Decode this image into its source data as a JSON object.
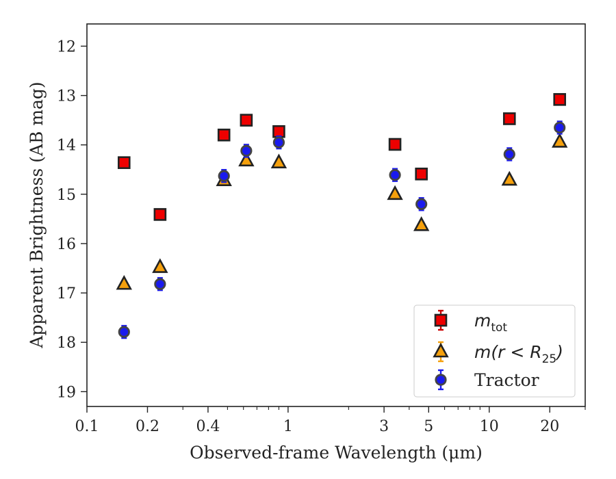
{
  "chart_data": {
    "type": "scatter",
    "title": "",
    "xlabel": "Observed-frame Wavelength (μm)",
    "ylabel": "Apparent Brightness (AB mag)",
    "xscale": "log",
    "xlim": [
      0.1,
      30
    ],
    "ylim": [
      19.3,
      11.55
    ],
    "y_inverted": true,
    "x_major_ticks": [
      {
        "value": 0.1,
        "label": "0.1"
      },
      {
        "value": 0.2,
        "label": "0.2"
      },
      {
        "value": 0.4,
        "label": "0.4"
      },
      {
        "value": 1,
        "label": "1"
      },
      {
        "value": 3,
        "label": "3"
      },
      {
        "value": 5,
        "label": "5"
      },
      {
        "value": 10,
        "label": "10"
      },
      {
        "value": 20,
        "label": "20"
      }
    ],
    "x_minor_ticks": [
      0.3,
      0.5,
      0.6,
      0.7,
      0.8,
      0.9,
      2,
      4,
      6,
      7,
      8,
      9,
      30
    ],
    "y_ticks": [
      {
        "value": 12,
        "label": "12"
      },
      {
        "value": 13,
        "label": "13"
      },
      {
        "value": 14,
        "label": "14"
      },
      {
        "value": 15,
        "label": "15"
      },
      {
        "value": 16,
        "label": "16"
      },
      {
        "value": 17,
        "label": "17"
      },
      {
        "value": 18,
        "label": "18"
      },
      {
        "value": 19,
        "label": "19"
      }
    ],
    "grid": false,
    "legend_position": "lower-right",
    "series": [
      {
        "name": "m_tot",
        "legend": {
          "main": "m",
          "sub": "tot",
          "rest": ""
        },
        "marker": "square",
        "color": "#ee0000",
        "errcolor": "#cc0000",
        "x": [
          0.153,
          0.231,
          0.48,
          0.62,
          0.9,
          3.4,
          4.6,
          12.6,
          22.4
        ],
        "y": [
          14.36,
          15.41,
          13.8,
          13.5,
          13.73,
          13.99,
          14.59,
          13.47,
          13.08
        ]
      },
      {
        "name": "m(r < R25)",
        "legend": {
          "main": "m(r < R",
          "sub": "25",
          "rest": ")"
        },
        "marker": "triangle",
        "color": "#f5a00c",
        "errcolor": "#f5a00c",
        "x": [
          0.153,
          0.231,
          0.48,
          0.62,
          0.9,
          3.4,
          4.6,
          12.6,
          22.4
        ],
        "y": [
          16.82,
          16.48,
          14.72,
          14.32,
          14.36,
          15.0,
          15.63,
          14.71,
          13.94
        ]
      },
      {
        "name": "Tractor",
        "legend": {
          "main": "Tractor",
          "sub": "",
          "rest": ""
        },
        "marker": "circle",
        "color": "#1a1aee",
        "errcolor": "#1a1aee",
        "x": [
          0.153,
          0.231,
          0.48,
          0.62,
          0.9,
          3.4,
          4.6,
          12.6,
          22.4
        ],
        "y": [
          17.79,
          16.82,
          14.63,
          14.12,
          13.95,
          14.61,
          15.2,
          14.19,
          13.65
        ]
      }
    ]
  }
}
